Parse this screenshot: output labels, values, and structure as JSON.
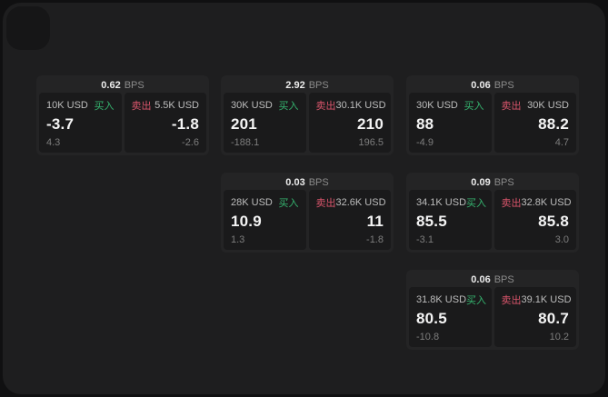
{
  "labels": {
    "bps_unit": "BPS",
    "buy": "买入",
    "sell": "卖出"
  },
  "colors": {
    "backdrop": "#101011",
    "page_background": "#1e1e1f",
    "card_background": "#242425",
    "panel_background": "#1a1a1b",
    "buy_accent": "#35b46f",
    "sell_accent": "#d9556b"
  },
  "cards": [
    {
      "bps": "0.62",
      "grid": {
        "row": 1,
        "col": 1
      },
      "buy": {
        "amount": "10K USD",
        "price": "-3.7",
        "sub": "4.3"
      },
      "sell": {
        "amount": "5.5K USD",
        "price": "-1.8",
        "sub": "-2.6"
      }
    },
    {
      "bps": "2.92",
      "grid": {
        "row": 1,
        "col": 2
      },
      "buy": {
        "amount": "30K USD",
        "price": "201",
        "sub": "-188.1"
      },
      "sell": {
        "amount": "30.1K USD",
        "price": "210",
        "sub": "196.5"
      }
    },
    {
      "bps": "0.06",
      "grid": {
        "row": 1,
        "col": 3
      },
      "buy": {
        "amount": "30K USD",
        "price": "88",
        "sub": "-4.9"
      },
      "sell": {
        "amount": "30K USD",
        "price": "88.2",
        "sub": "4.7"
      }
    },
    {
      "bps": "0.03",
      "grid": {
        "row": 2,
        "col": 2
      },
      "buy": {
        "amount": "28K USD",
        "price": "10.9",
        "sub": "1.3"
      },
      "sell": {
        "amount": "32.6K USD",
        "price": "11",
        "sub": "-1.8"
      }
    },
    {
      "bps": "0.09",
      "grid": {
        "row": 2,
        "col": 3
      },
      "buy": {
        "amount": "34.1K USD",
        "price": "85.5",
        "sub": "-3.1"
      },
      "sell": {
        "amount": "32.8K USD",
        "price": "85.8",
        "sub": "3.0"
      }
    },
    {
      "bps": "0.06",
      "grid": {
        "row": 3,
        "col": 3
      },
      "buy": {
        "amount": "31.8K USD",
        "price": "80.5",
        "sub": "-10.8"
      },
      "sell": {
        "amount": "39.1K USD",
        "price": "80.7",
        "sub": "10.2"
      }
    }
  ]
}
